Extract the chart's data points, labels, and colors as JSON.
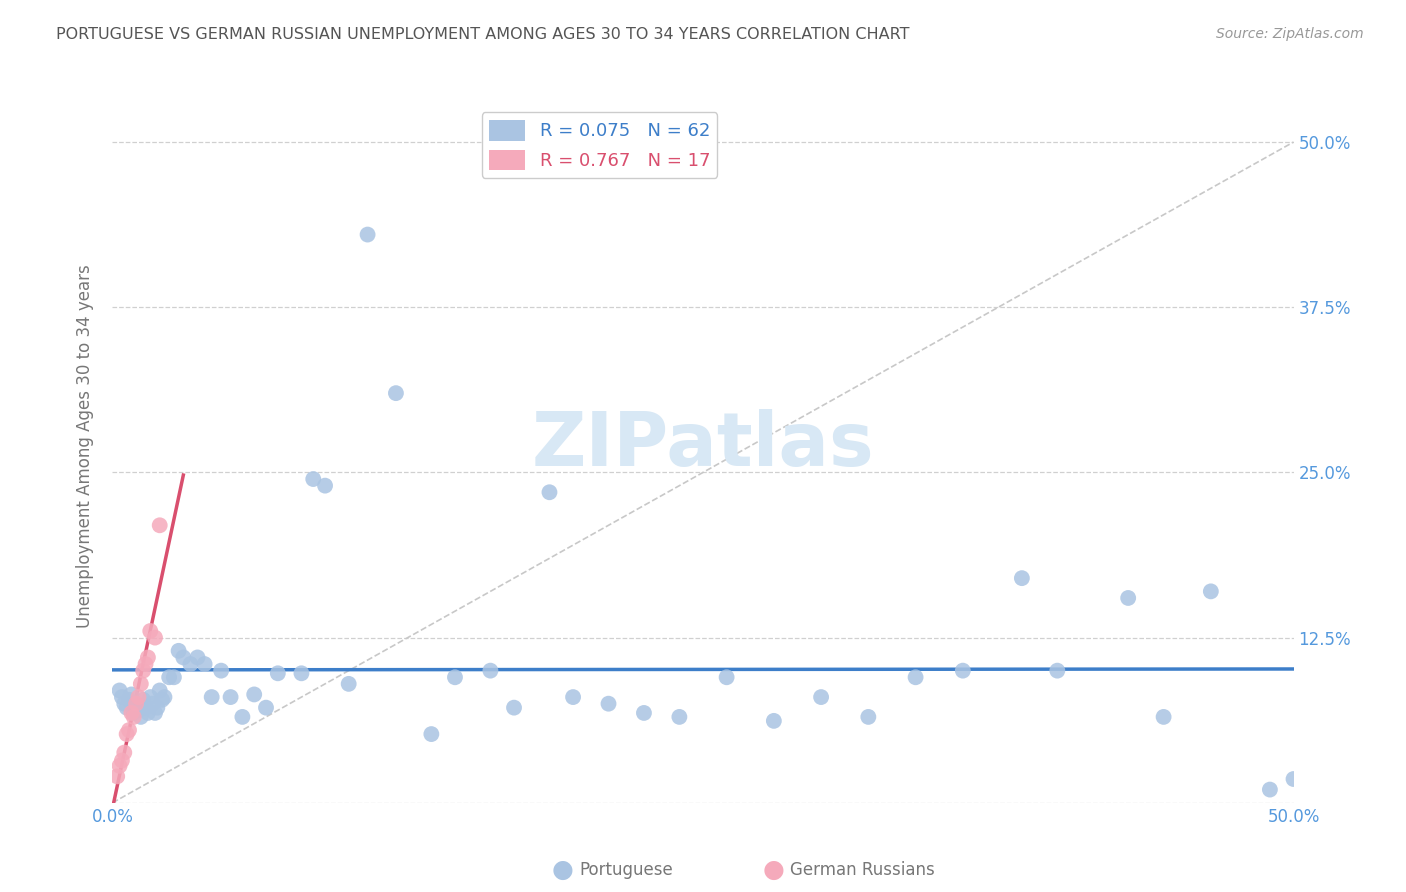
{
  "title": "PORTUGUESE VS GERMAN RUSSIAN UNEMPLOYMENT AMONG AGES 30 TO 34 YEARS CORRELATION CHART",
  "source": "Source: ZipAtlas.com",
  "ylabel": "Unemployment Among Ages 30 to 34 years",
  "xlim": [
    0.0,
    0.5
  ],
  "ylim": [
    0.0,
    0.54
  ],
  "xtick_vals": [
    0.0,
    0.125,
    0.25,
    0.375,
    0.5
  ],
  "ytick_vals": [
    0.0,
    0.125,
    0.25,
    0.375,
    0.5
  ],
  "R_portuguese": 0.075,
  "N_portuguese": 62,
  "R_german": 0.767,
  "N_german": 17,
  "portuguese_scatter_color": "#aac4e2",
  "german_scatter_color": "#f5aabb",
  "portuguese_line_color": "#3d7ec9",
  "german_line_color": "#d94f6e",
  "identity_line_color": "#c8c8c8",
  "grid_color": "#d0d0d0",
  "title_color": "#555555",
  "axis_label_color": "#777777",
  "right_tick_color": "#5599dd",
  "bottom_tick_color": "#5599dd",
  "watermark_color": "#d8e8f5",
  "background_color": "#ffffff",
  "port_x": [
    0.003,
    0.004,
    0.005,
    0.006,
    0.007,
    0.008,
    0.009,
    0.01,
    0.011,
    0.012,
    0.013,
    0.014,
    0.015,
    0.016,
    0.017,
    0.018,
    0.019,
    0.02,
    0.021,
    0.022,
    0.024,
    0.026,
    0.028,
    0.03,
    0.033,
    0.036,
    0.039,
    0.042,
    0.046,
    0.05,
    0.055,
    0.06,
    0.065,
    0.07,
    0.08,
    0.085,
    0.09,
    0.1,
    0.108,
    0.12,
    0.135,
    0.145,
    0.16,
    0.17,
    0.185,
    0.195,
    0.21,
    0.225,
    0.24,
    0.26,
    0.28,
    0.3,
    0.32,
    0.34,
    0.36,
    0.385,
    0.4,
    0.43,
    0.445,
    0.465,
    0.49,
    0.5
  ],
  "port_y": [
    0.085,
    0.08,
    0.075,
    0.072,
    0.078,
    0.082,
    0.068,
    0.075,
    0.07,
    0.065,
    0.078,
    0.072,
    0.068,
    0.08,
    0.075,
    0.068,
    0.072,
    0.085,
    0.078,
    0.08,
    0.095,
    0.095,
    0.115,
    0.11,
    0.105,
    0.11,
    0.105,
    0.08,
    0.1,
    0.08,
    0.065,
    0.082,
    0.072,
    0.098,
    0.098,
    0.245,
    0.24,
    0.09,
    0.43,
    0.31,
    0.052,
    0.095,
    0.1,
    0.072,
    0.235,
    0.08,
    0.075,
    0.068,
    0.065,
    0.095,
    0.062,
    0.08,
    0.065,
    0.095,
    0.1,
    0.17,
    0.1,
    0.155,
    0.065,
    0.16,
    0.01,
    0.018
  ],
  "germ_x": [
    0.002,
    0.003,
    0.004,
    0.005,
    0.006,
    0.007,
    0.008,
    0.009,
    0.01,
    0.011,
    0.012,
    0.013,
    0.014,
    0.015,
    0.016,
    0.018,
    0.02
  ],
  "germ_y": [
    0.02,
    0.028,
    0.032,
    0.038,
    0.052,
    0.055,
    0.068,
    0.065,
    0.075,
    0.08,
    0.09,
    0.1,
    0.105,
    0.11,
    0.13,
    0.125,
    0.21
  ]
}
